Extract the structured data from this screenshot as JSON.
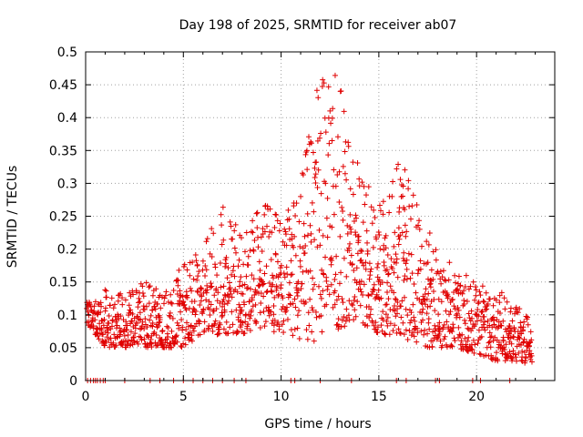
{
  "chart_data": {
    "type": "scatter",
    "title": "Day 198 of 2025, SRMTID for receiver ab07",
    "xlabel": "GPS time / hours",
    "ylabel": "SRMTID / TECUs",
    "xlim": [
      0,
      24
    ],
    "ylim": [
      0,
      0.5
    ],
    "xticks": [
      0,
      5,
      10,
      15,
      20
    ],
    "yticks": [
      0,
      0.05,
      0.1,
      0.15,
      0.2,
      0.25,
      0.3,
      0.35,
      0.4,
      0.45,
      0.5
    ],
    "xtick_labels": [
      "0",
      "5",
      "10",
      "15",
      "20"
    ],
    "ytick_labels": [
      "0",
      "0.05",
      "0.1",
      "0.15",
      "0.2",
      "0.25",
      "0.3",
      "0.35",
      "0.4",
      "0.45",
      "0.5"
    ],
    "grid": true,
    "marker": "+",
    "color": "#e00000",
    "series": [
      {
        "name": "SRMTID",
        "envelope": [
          {
            "t": 0.0,
            "lo": 0.09,
            "hi": 0.12
          },
          {
            "t": 1.0,
            "lo": 0.05,
            "hi": 0.14
          },
          {
            "t": 2.0,
            "lo": 0.05,
            "hi": 0.13
          },
          {
            "t": 3.0,
            "lo": 0.05,
            "hi": 0.16
          },
          {
            "t": 4.0,
            "lo": 0.05,
            "hi": 0.13
          },
          {
            "t": 5.0,
            "lo": 0.05,
            "hi": 0.18
          },
          {
            "t": 6.0,
            "lo": 0.07,
            "hi": 0.2
          },
          {
            "t": 7.0,
            "lo": 0.07,
            "hi": 0.28
          },
          {
            "t": 8.0,
            "lo": 0.07,
            "hi": 0.22
          },
          {
            "t": 9.0,
            "lo": 0.08,
            "hi": 0.28
          },
          {
            "t": 10.0,
            "lo": 0.07,
            "hi": 0.25
          },
          {
            "t": 11.0,
            "lo": 0.06,
            "hi": 0.3
          },
          {
            "t": 12.0,
            "lo": 0.06,
            "hi": 0.48
          },
          {
            "t": 13.0,
            "lo": 0.08,
            "hi": 0.46
          },
          {
            "t": 14.0,
            "lo": 0.09,
            "hi": 0.33
          },
          {
            "t": 15.0,
            "lo": 0.07,
            "hi": 0.27
          },
          {
            "t": 16.0,
            "lo": 0.07,
            "hi": 0.35
          },
          {
            "t": 17.0,
            "lo": 0.05,
            "hi": 0.27
          },
          {
            "t": 18.0,
            "lo": 0.05,
            "hi": 0.2
          },
          {
            "t": 19.0,
            "lo": 0.05,
            "hi": 0.17
          },
          {
            "t": 20.0,
            "lo": 0.04,
            "hi": 0.15
          },
          {
            "t": 21.0,
            "lo": 0.03,
            "hi": 0.14
          },
          {
            "t": 22.0,
            "lo": 0.03,
            "hi": 0.13
          },
          {
            "t": 23.0,
            "lo": 0.02,
            "hi": 0.08
          }
        ],
        "zero_points_x": [
          0.1,
          0.25,
          0.4,
          0.5,
          0.6,
          0.75,
          0.9,
          1.0,
          2.0,
          3.3,
          3.8,
          4.5,
          5.0,
          5.5,
          6.0,
          6.5,
          7.0,
          7.6,
          8.2,
          10.5,
          10.7,
          12.0,
          13.6,
          15.9,
          16.4,
          17.9,
          18.1,
          19.8,
          20.2,
          21.7
        ]
      }
    ]
  }
}
